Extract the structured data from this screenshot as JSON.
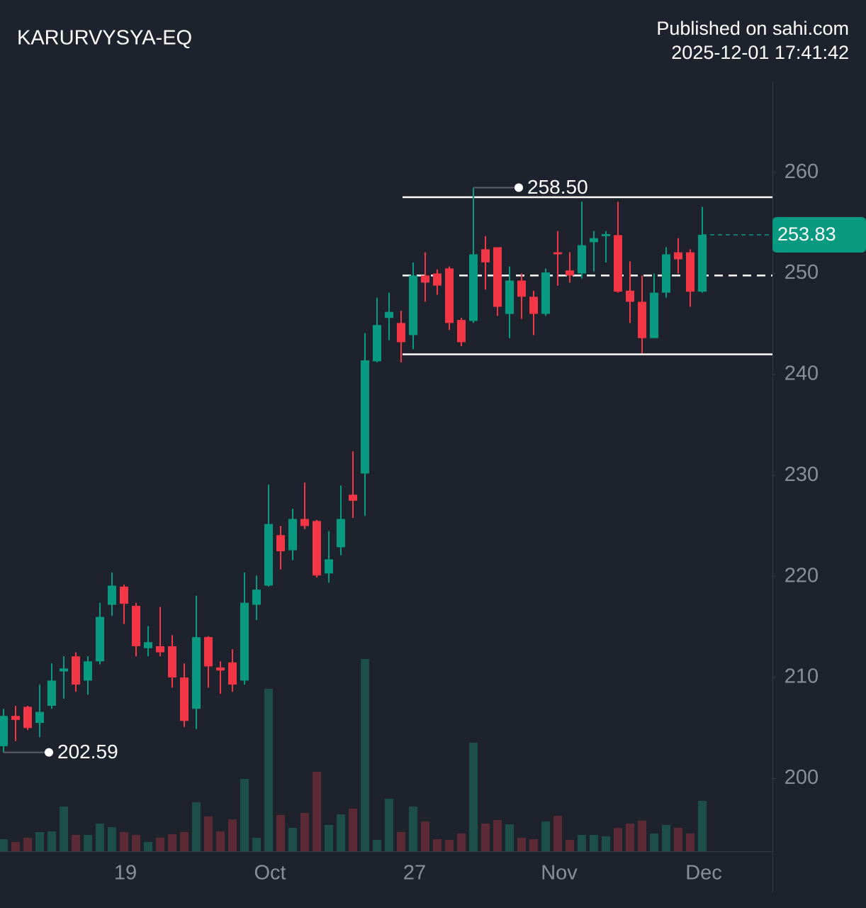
{
  "chart_data": {
    "type": "candlestick",
    "title": "KARURVYSYA-EQ",
    "publisher": "Published on sahi.com",
    "timestamp": "2025-12-01 17:41:42",
    "categories": [
      null,
      null,
      null,
      null,
      null,
      null,
      null,
      null,
      null,
      null,
      "19",
      null,
      null,
      null,
      null,
      null,
      null,
      null,
      null,
      null,
      null,
      null,
      "Oct",
      null,
      null,
      null,
      null,
      null,
      null,
      null,
      null,
      null,
      null,
      null,
      "27",
      null,
      null,
      null,
      null,
      null,
      null,
      null,
      null,
      null,
      null,
      null,
      "Nov",
      null,
      null,
      null,
      null,
      null,
      null,
      null,
      null,
      null,
      null,
      null,
      "Dec"
    ],
    "open": [
      203.2,
      206.2,
      207.1,
      205.5,
      207.2,
      210.6,
      212.1,
      209.7,
      211.6,
      217.2,
      219.0,
      217.1,
      212.9,
      213.1,
      213.1,
      210.0,
      206.9,
      214.0,
      211.0,
      211.5,
      209.7,
      217.2,
      219.1,
      224.1,
      222.6,
      225.7,
      225.5,
      220.3,
      222.9,
      228.1,
      230.2,
      241.3,
      245.6,
      245.1,
      243.9,
      249.8,
      250.0,
      250.5,
      245.4,
      245.3,
      252.4,
      252.6,
      246.0,
      249.3,
      247.7,
      246.0,
      252.1,
      250.3,
      250.0,
      253.1,
      253.7,
      253.8,
      248.3,
      247.2,
      243.6,
      248.1,
      252.1,
      252.1,
      248.2
    ],
    "high": [
      206.9,
      207.2,
      207.2,
      209.3,
      211.4,
      212.1,
      212.5,
      212.1,
      217.4,
      220.4,
      219.2,
      217.4,
      215.1,
      217.0,
      214.2,
      211.4,
      218.1,
      214.1,
      211.6,
      212.8,
      220.4,
      220.1,
      229.1,
      225.0,
      226.7,
      229.3,
      225.6,
      224.5,
      229.0,
      232.4,
      244.1,
      247.6,
      248.1,
      246.3,
      251.1,
      252.1,
      250.4,
      250.7,
      245.6,
      258.5,
      253.7,
      252.6,
      250.7,
      250.0,
      248.3,
      250.5,
      254.2,
      252.1,
      257.1,
      254.2,
      254.2,
      257.1,
      251.2,
      249.8,
      250.0,
      252.6,
      253.5,
      252.4,
      256.6
    ],
    "low": [
      202.59,
      203.7,
      204.8,
      204.1,
      206.9,
      207.9,
      208.6,
      208.3,
      211.3,
      216.1,
      215.3,
      212.1,
      212.1,
      212.1,
      209.0,
      205.1,
      204.9,
      209.0,
      208.4,
      208.6,
      209.3,
      215.7,
      219.0,
      220.7,
      221.6,
      224.7,
      219.9,
      219.4,
      222.1,
      225.8,
      226.0,
      241.2,
      243.4,
      241.2,
      242.5,
      247.2,
      247.9,
      244.4,
      242.8,
      245.1,
      248.4,
      245.8,
      243.6,
      245.5,
      243.9,
      245.8,
      248.8,
      249.1,
      249.5,
      250.2,
      251.1,
      248.1,
      245.1,
      242.1,
      243.6,
      247.6,
      250.0,
      246.7,
      248.1
    ],
    "close": [
      206.2,
      205.8,
      205.0,
      206.6,
      209.7,
      210.9,
      209.3,
      211.6,
      216.0,
      219.1,
      217.3,
      213.1,
      213.5,
      212.5,
      210.0,
      205.7,
      214.0,
      211.1,
      210.7,
      209.3,
      217.4,
      218.7,
      225.2,
      222.5,
      225.7,
      225.0,
      220.1,
      221.7,
      225.7,
      227.5,
      241.4,
      244.9,
      246.2,
      243.2,
      249.8,
      249.1,
      248.8,
      245.1,
      243.2,
      251.9,
      251.1,
      246.7,
      249.3,
      247.7,
      246.0,
      250.1,
      251.9,
      249.8,
      252.8,
      253.5,
      253.9,
      248.2,
      247.2,
      243.6,
      248.1,
      251.9,
      251.4,
      248.2,
      253.83
    ],
    "volume": [
      17,
      13,
      19,
      27,
      28,
      63,
      23,
      23,
      39,
      34,
      27,
      23,
      13,
      19,
      24,
      27,
      69,
      49,
      28,
      45,
      102,
      19,
      229,
      51,
      33,
      54,
      112,
      37,
      52,
      60,
      271,
      16,
      74,
      27,
      63,
      42,
      17,
      16,
      25,
      153,
      39,
      44,
      38,
      19,
      17,
      42,
      50,
      16,
      23,
      23,
      21,
      33,
      39,
      43,
      25,
      37,
      33,
      25,
      71
    ],
    "y2lim": [
      0,
      300
    ],
    "ylim": [
      192.8,
      269.0
    ],
    "yticks": [
      200,
      210,
      220,
      230,
      240,
      250,
      260
    ],
    "up_color": "#089981",
    "down_color": "#f23645",
    "volume_up_color": "#1c4f4a",
    "volume_down_color": "#5b2a34",
    "last_price": 253.83,
    "levels": [
      {
        "value": 257.55,
        "style": "solid"
      },
      {
        "value": 249.8,
        "style": "dashed"
      },
      {
        "value": 242.0,
        "style": "solid"
      }
    ],
    "annotations": [
      {
        "value": 258.5,
        "label": "258.50",
        "kind": "high"
      },
      {
        "value": 202.59,
        "kind": "low"
      }
    ]
  }
}
